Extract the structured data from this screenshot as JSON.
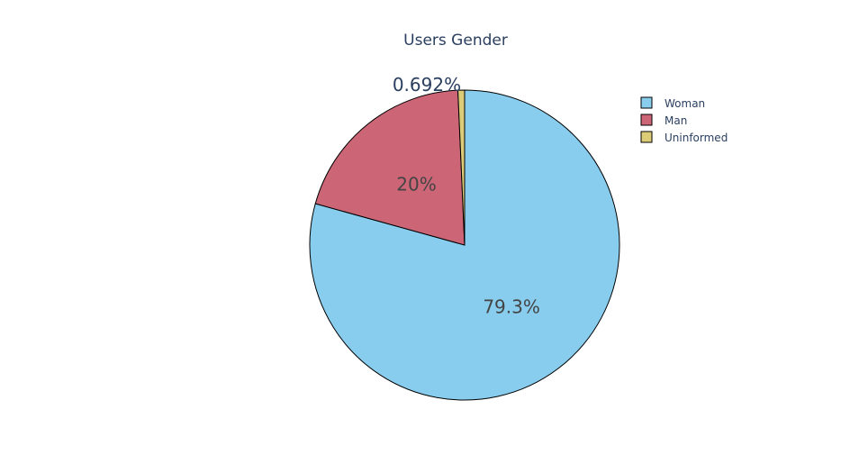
{
  "chart_data": {
    "type": "pie",
    "title": "Users Gender",
    "categories": [
      "Woman",
      "Man",
      "Uninformed"
    ],
    "values": [
      79.3,
      20.0,
      0.692
    ],
    "labels": [
      "79.3%",
      "20%",
      "0.692%"
    ],
    "colors": [
      "#89cdee",
      "#cc6677",
      "#ddcc77"
    ],
    "start_angle_deg": 90,
    "direction": "clockwise",
    "slice_outline_color": "#000000",
    "legend": {
      "position": "top-right",
      "entries": [
        "Woman",
        "Man",
        "Uninformed"
      ]
    },
    "label_colors": {
      "inside": "#444444",
      "outside": "#2a3f5f"
    }
  }
}
